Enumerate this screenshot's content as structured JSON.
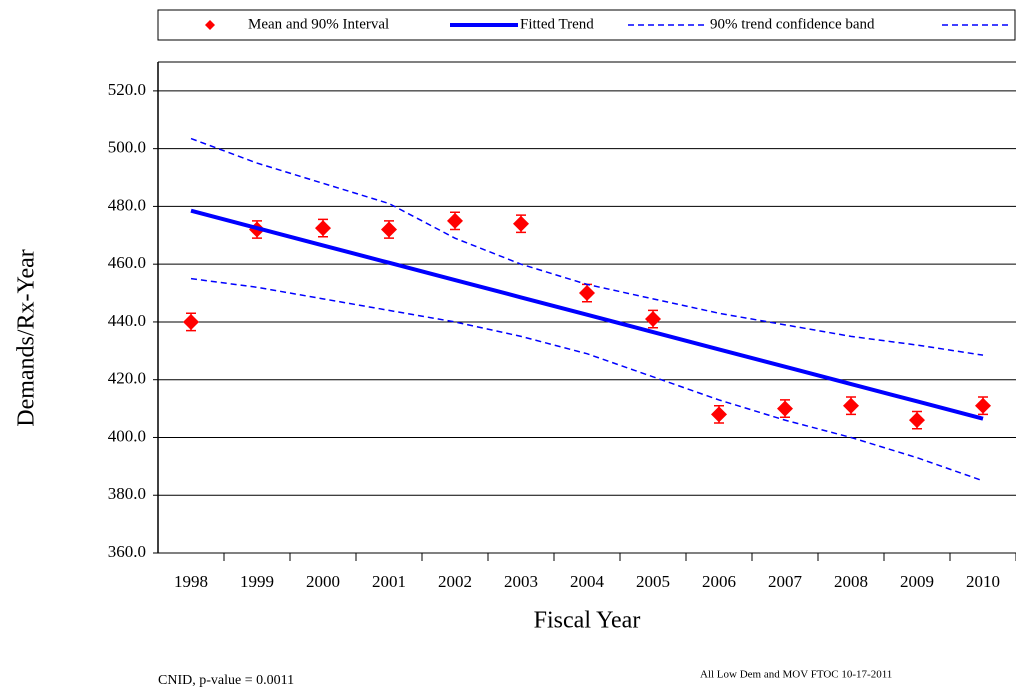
{
  "chart_data": {
    "type": "line",
    "x_label": "Fiscal Year",
    "y_label": "Demands/Rx-Year",
    "categories": [
      "1998",
      "1999",
      "2000",
      "2001",
      "2002",
      "2003",
      "2004",
      "2005",
      "2006",
      "2007",
      "2008",
      "2009",
      "2010"
    ],
    "series": [
      {
        "name": "Mean and 90% Interval",
        "color": "#ff0000",
        "marker": "diamond",
        "line": false,
        "values": [
          440,
          472,
          472.5,
          472,
          475,
          474,
          450,
          441,
          408,
          410,
          411,
          406,
          411
        ],
        "errors": [
          3,
          3,
          3,
          3,
          3,
          3,
          3,
          3,
          3,
          3,
          3,
          3,
          3
        ]
      },
      {
        "name": "Fitted Trend",
        "color": "#0000ff",
        "line": true,
        "dash": false,
        "width": 4,
        "values": [
          478.5,
          472.5,
          466.5,
          460.5,
          454.5,
          448.5,
          442.5,
          436.5,
          430.5,
          424.5,
          418.5,
          412.5,
          406.5
        ]
      },
      {
        "name": "90% trend confidence band",
        "color": "#0000ff",
        "line": true,
        "dash": true,
        "width": 1.5,
        "values": [
          503.5,
          495,
          488,
          481,
          469,
          460,
          453,
          448,
          443,
          439,
          435,
          432,
          428.5
        ]
      },
      {
        "color": "#0000ff",
        "line": true,
        "dash": true,
        "width": 1.5,
        "values": [
          455,
          452,
          448,
          444,
          440,
          435,
          429,
          421,
          413,
          406,
          400,
          393,
          385
        ]
      }
    ],
    "ylim": [
      360,
      530
    ],
    "yticks": [
      {
        "value": 360,
        "label": "360.0"
      },
      {
        "value": 380,
        "label": "380.0"
      },
      {
        "value": 400,
        "label": "400.0"
      },
      {
        "value": 420,
        "label": "420.0"
      },
      {
        "value": 440,
        "label": "440.0"
      },
      {
        "value": 460,
        "label": "460.0"
      },
      {
        "value": 480,
        "label": "480.0"
      },
      {
        "value": 500,
        "label": "500.0"
      },
      {
        "value": 520,
        "label": "520.0"
      }
    ],
    "grid": true,
    "legend": "top",
    "footnote_left": "CNID, p-value = 0.0011",
    "footnote_right": "All Low Dem and MOV FTOC 10-17-2011"
  }
}
